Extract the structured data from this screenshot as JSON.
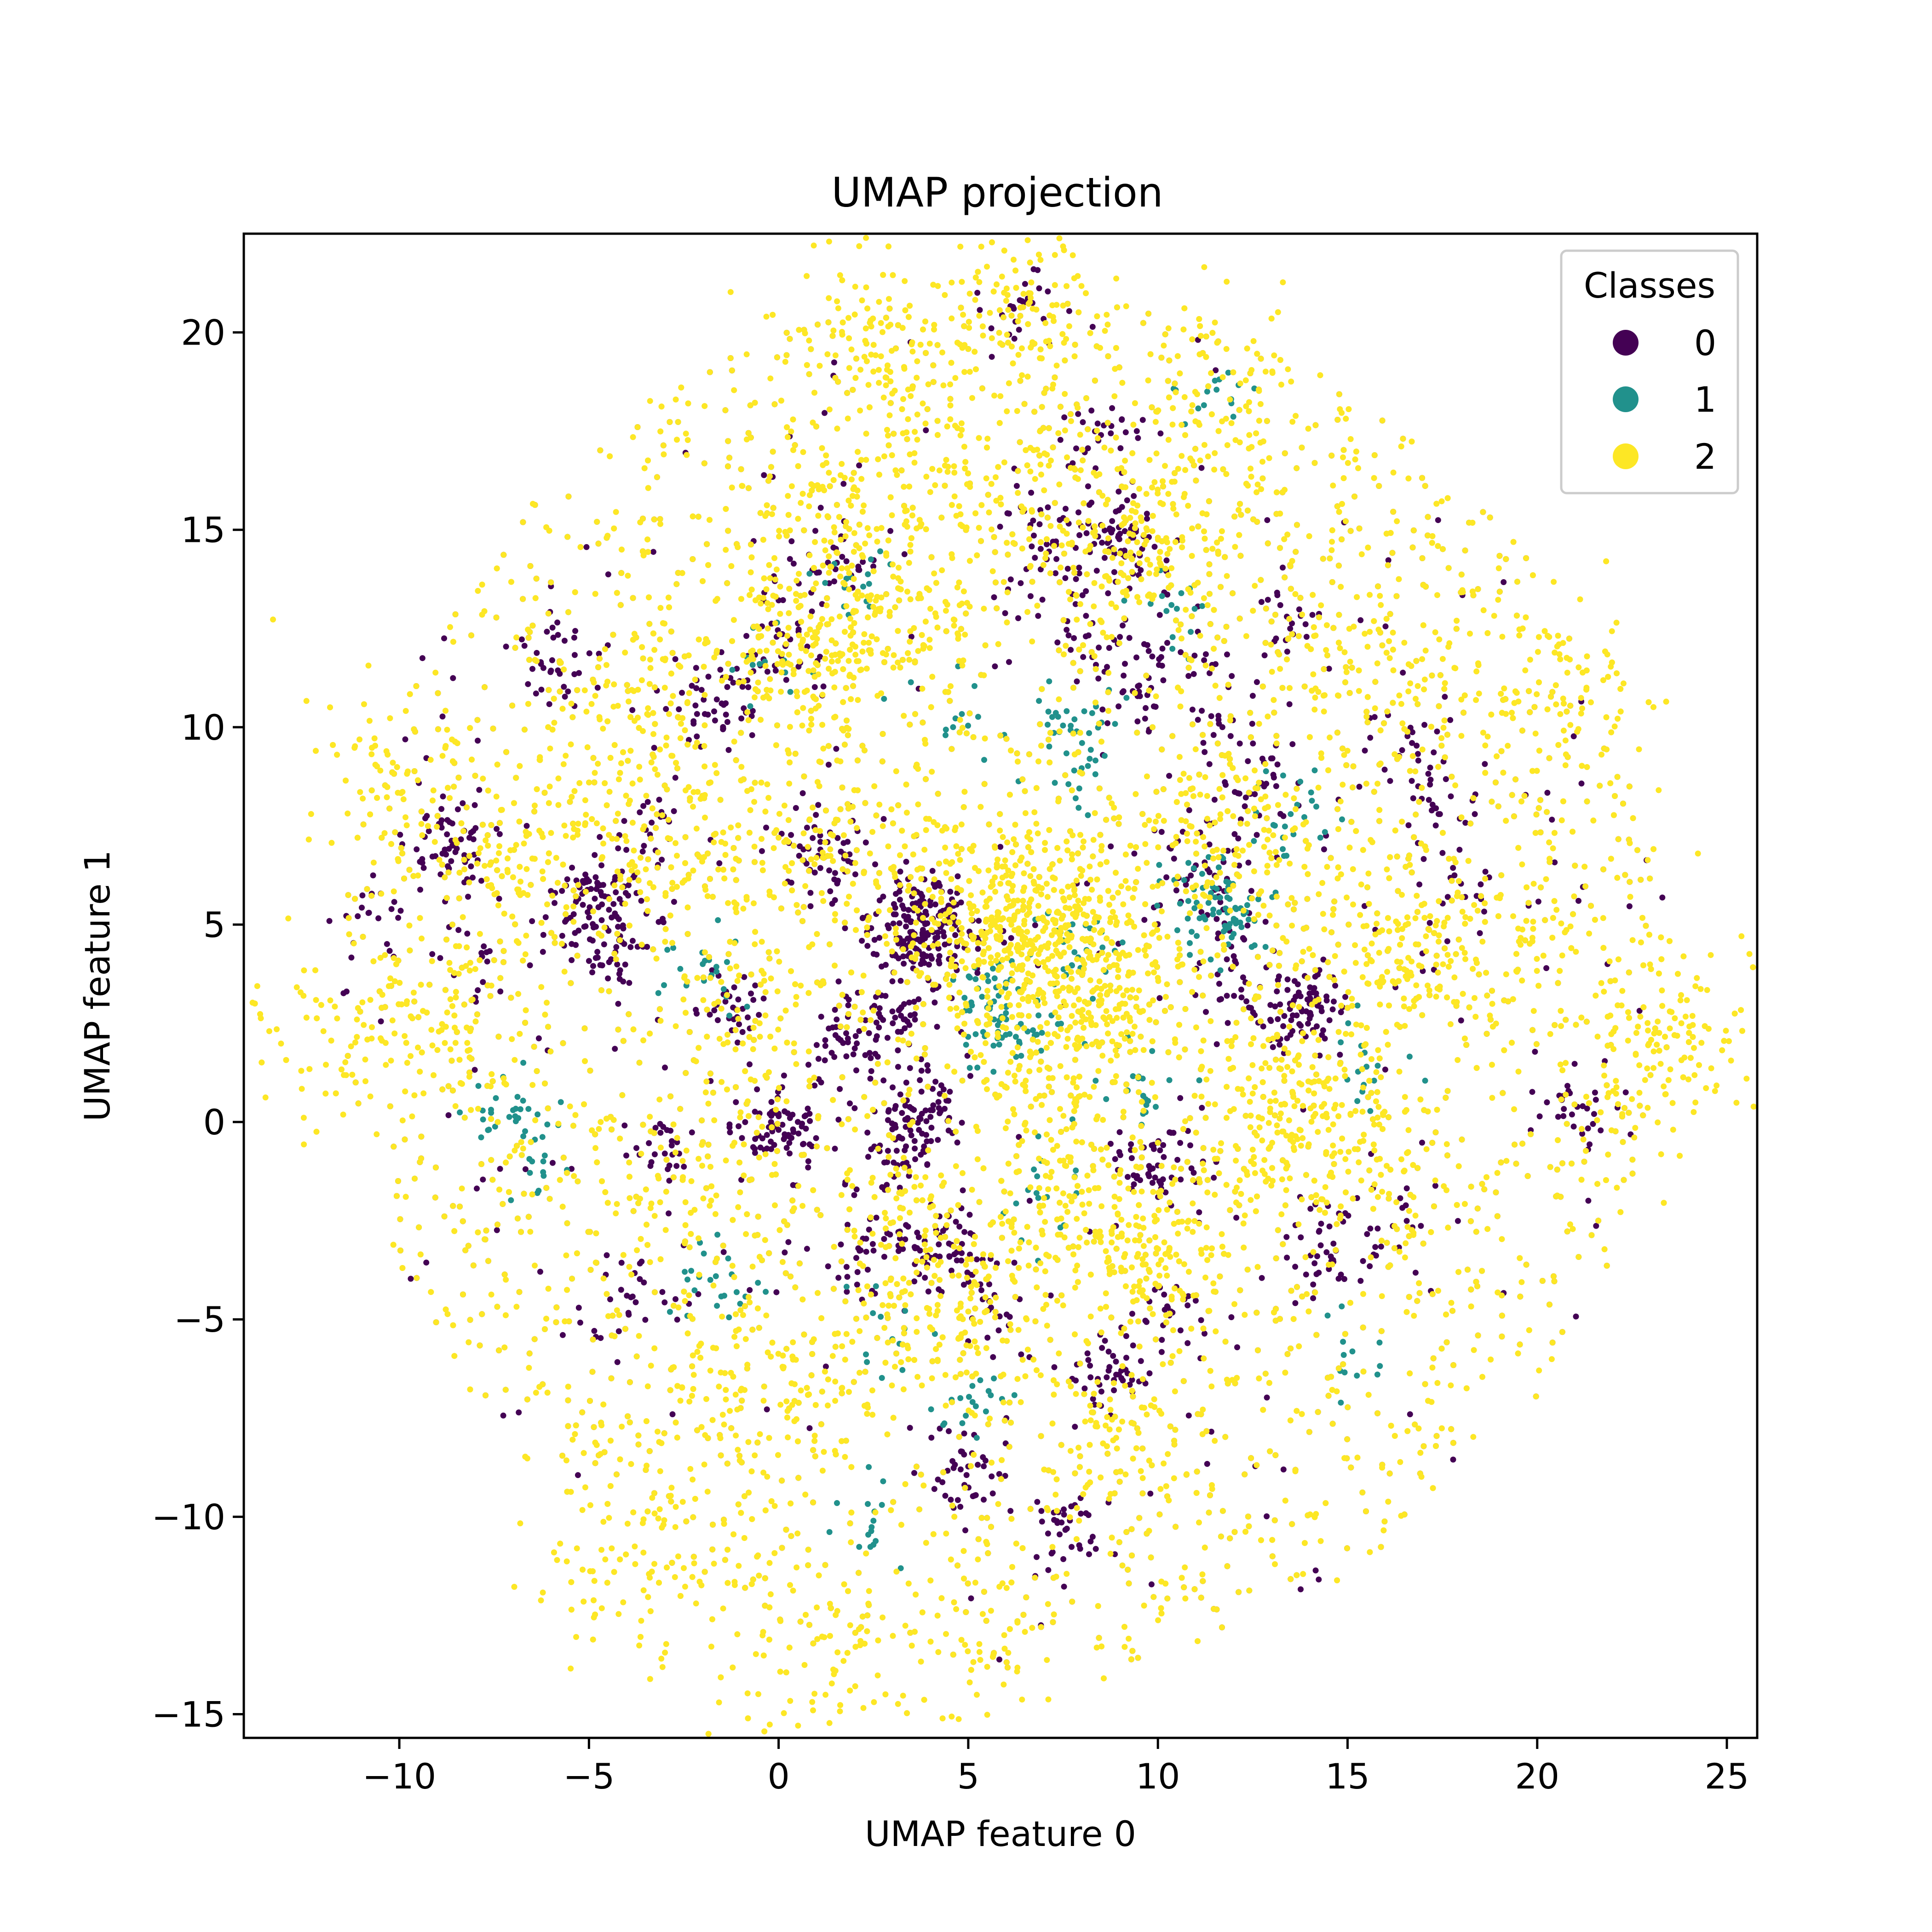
{
  "chart_data": {
    "type": "scatter",
    "title": "UMAP projection",
    "xlabel": "UMAP feature 0",
    "ylabel": "UMAP feature 1",
    "xlim": [
      -14.1,
      25.8
    ],
    "ylim": [
      -15.6,
      22.5
    ],
    "xticks": [
      -10,
      -5,
      0,
      5,
      10,
      15,
      20,
      25
    ],
    "yticks": [
      -15,
      -10,
      -5,
      0,
      5,
      10,
      15,
      20
    ],
    "xtick_labels": [
      "−10",
      "−5",
      "0",
      "5",
      "10",
      "15",
      "20",
      "25"
    ],
    "ytick_labels": [
      "−15",
      "−10",
      "−5",
      "0",
      "5",
      "10",
      "15",
      "20"
    ],
    "grid": false,
    "legend": {
      "title": "Classes",
      "placement": "top-right",
      "entries": [
        "0",
        "1",
        "2"
      ]
    },
    "colors": {
      "0": "#440154",
      "1": "#21918c",
      "2": "#fde725"
    },
    "series": [
      {
        "name": "0",
        "color": "#440154",
        "x": [
          3.8,
          3.5,
          4.2,
          3.3,
          4.0,
          3.6,
          3.9,
          4.3,
          -4.8,
          -4.5,
          -5.0,
          -8.8,
          -8.6,
          -1.5,
          -1.7,
          -4.2,
          -4.6,
          0.0,
          0.3,
          -0.2,
          3.7,
          3.4,
          4.0,
          3.2,
          3.6,
          4.7,
          4.5,
          9.0,
          8.8,
          9.3,
          10.0,
          9.8,
          14.3,
          14.0,
          13.8,
          14.2,
          8.7,
          8.9,
          3.3,
          3.0,
          1.5,
          1.7,
          1.2,
          1.1,
          -4.0,
          11.6,
          11.0,
          12.4,
          12.0,
          0.2,
          -0.1,
          11.7,
          10.6,
          9.5,
          8.5,
          6.9,
          8.1,
          7.3,
          -1.2,
          2.1,
          13.4,
          -7.7,
          18.1,
          15.6,
          6.2,
          17.4,
          -6.2,
          -3.5,
          -10.8,
          21.2,
          -3.0,
          16.7,
          1.5,
          5.6,
          12.8,
          4.8,
          10.3,
          7.6
        ],
        "y": [
          5.1,
          4.7,
          4.8,
          5.4,
          5.6,
          4.4,
          4.2,
          5.0,
          5.9,
          5.7,
          6.1,
          6.9,
          7.0,
          10.6,
          10.4,
          4.6,
          4.5,
          -0.2,
          0.1,
          0.0,
          -0.2,
          0.1,
          0.3,
          -0.4,
          -3.2,
          -3.3,
          -3.4,
          14.9,
          15.0,
          14.8,
          -1.1,
          -1.2,
          2.9,
          3.0,
          2.8,
          -3.4,
          -6.3,
          -6.4,
          2.6,
          2.8,
          2.2,
          2.0,
          6.7,
          6.9,
          -4.4,
          5.7,
          6.5,
          2.9,
          4.2,
          12.1,
          13.7,
          10.0,
          11.9,
          10.9,
          17.4,
          15.5,
          12.3,
          13.9,
          2.9,
          -3.2,
          12.8,
          4.3,
          5.7,
          -2.7,
          20.6,
          7.8,
          11.5,
          7.4,
          5.3,
          0.4,
          -0.8,
          9.6,
          14.0,
          -4.7,
          8.5,
          -8.8,
          -4.9,
          -10.3
        ],
        "count": 3500
      },
      {
        "name": "1",
        "color": "#21918c",
        "x": [
          11.4,
          11.2,
          11.8,
          8.0,
          8.2,
          7.8,
          5.8,
          6.0,
          5.5,
          6.3,
          7.5,
          7.8,
          11.3,
          12.0,
          -7.0,
          -6.5,
          -2.0,
          -1.8,
          3.0,
          2.5,
          14.9,
          15.5,
          13.5,
          -0.5,
          4.6,
          1.9,
          9.6,
          6.8,
          10.5,
          5.2
        ],
        "y": [
          5.8,
          5.2,
          4.9,
          9.6,
          9.2,
          10.2,
          3.2,
          2.6,
          2.9,
          2.4,
          4.6,
          4.3,
          18.5,
          5.1,
          0.3,
          -1.0,
          4.0,
          -4.0,
          -5.5,
          -10.1,
          -5.9,
          1.4,
          7.8,
          11.6,
          10.0,
          13.8,
          1.1,
          -1.8,
          13.0,
          -7.2
        ],
        "count": 900
      },
      {
        "name": "2",
        "color": "#fde725",
        "x": [
          6.0,
          5.7,
          6.2,
          7.3,
          7.6,
          8.3,
          8.1,
          7.9,
          8.5,
          6.0,
          1.1,
          1.4,
          0.6,
          -3.0,
          2.6,
          4.0,
          0.0,
          -5.0,
          -0.5,
          -2.3,
          -1.0,
          4.8,
          5.0,
          7.0,
          8.4,
          9.2,
          10.2,
          12.5,
          13.6,
          15.5,
          16.8,
          -7.0,
          -8.8,
          -10.5,
          -12.0,
          23.8,
          22.6,
          18.0,
          19.5,
          21.3,
          1.5,
          5.5,
          6.0,
          6.7,
          3.8,
          2.3,
          9.0,
          11.9,
          14.8,
          -2.5,
          -4.4,
          1.2,
          -3.5,
          3.2,
          2.8,
          0.8,
          11.0,
          12.8,
          14.5,
          15.8,
          10.0,
          7.0,
          8.9
        ],
        "y": [
          5.4,
          5.0,
          5.6,
          5.1,
          4.6,
          4.5,
          2.6,
          2.8,
          3.0,
          3.5,
          12.6,
          12.2,
          12.0,
          11.0,
          14.7,
          13.0,
          7.2,
          8.6,
          2.5,
          -1.5,
          -6.8,
          -4.6,
          -4.8,
          -1.0,
          -2.9,
          -3.0,
          -3.7,
          -0.7,
          0.4,
          4.0,
          4.5,
          6.2,
          2.0,
          8.9,
          2.3,
          2.5,
          1.7,
          10.7,
          4.9,
          11.0,
          -13.9,
          -13.8,
          20.8,
          20.6,
          18.2,
          20.1,
          14.4,
          18.3,
          12.0,
          -11.3,
          -10.8,
          16.0,
          6.4,
          6.0,
          -2.3,
          -6.9,
          7.1,
          7.4,
          -0.2,
          -1.9,
          14.8,
          16.0,
          -8.0
        ],
        "count": 9000
      }
    ]
  }
}
